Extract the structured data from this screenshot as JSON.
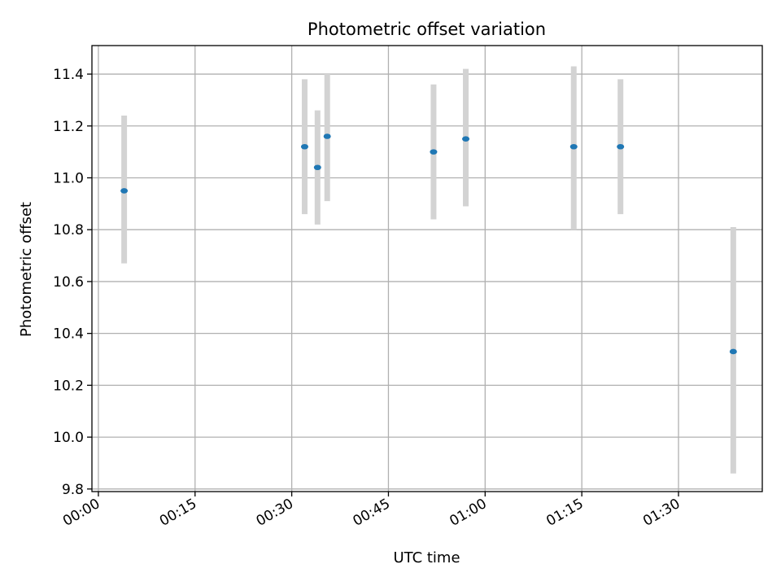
{
  "chart_data": {
    "type": "scatter",
    "title": "Photometric offset variation",
    "xlabel": "UTC time",
    "ylabel": "Photometric offset",
    "x_tick_labels": [
      "00:00",
      "00:15",
      "00:30",
      "00:45",
      "01:00",
      "01:15",
      "01:30"
    ],
    "y_tick_labels": [
      "9.8",
      "10.0",
      "10.2",
      "10.4",
      "10.6",
      "10.8",
      "11.0",
      "11.2",
      "11.4"
    ],
    "xlim": [
      "-00:01",
      "01:43"
    ],
    "ylim": [
      9.79,
      11.51
    ],
    "grid": true,
    "points": [
      {
        "x": "00:04",
        "y": 10.95,
        "yerr": [
          10.67,
          11.24
        ]
      },
      {
        "x": "00:32",
        "y": 11.12,
        "yerr": [
          10.86,
          11.38
        ]
      },
      {
        "x": "00:34",
        "y": 11.04,
        "yerr": [
          10.82,
          11.26
        ]
      },
      {
        "x": "00:35:30",
        "y": 11.16,
        "yerr": [
          10.91,
          11.4
        ]
      },
      {
        "x": "00:52",
        "y": 11.1,
        "yerr": [
          10.84,
          11.36
        ]
      },
      {
        "x": "00:57",
        "y": 11.15,
        "yerr": [
          10.89,
          11.42
        ]
      },
      {
        "x": "01:13:45",
        "y": 11.12,
        "yerr": [
          10.8,
          11.43
        ]
      },
      {
        "x": "01:21",
        "y": 11.12,
        "yerr": [
          10.86,
          11.38
        ]
      },
      {
        "x": "01:38:30",
        "y": 10.33,
        "yerr": [
          9.86,
          10.81
        ]
      }
    ],
    "colors": {
      "points": "#1f77b4",
      "errorbars": "#d3d3d3",
      "grid": "#b0b0b0"
    }
  }
}
